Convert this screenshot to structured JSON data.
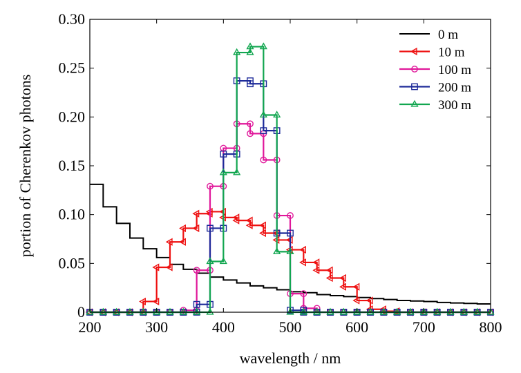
{
  "chart_data": {
    "type": "line",
    "xlabel": "wavelength / nm",
    "ylabel": "portion of Cherenkov photons",
    "xlim": [
      200,
      800
    ],
    "ylim": [
      0,
      0.3
    ],
    "xticks": [
      200,
      300,
      400,
      500,
      600,
      700,
      800
    ],
    "yticks": [
      0,
      0.05,
      0.1,
      0.15,
      0.2,
      0.25,
      0.3
    ],
    "xtick_labels": [
      "200",
      "300",
      "400",
      "500",
      "600",
      "700",
      "800"
    ],
    "ytick_labels": [
      "0",
      "0.05",
      "0.10",
      "0.15",
      "0.20",
      "0.25",
      "0.30"
    ],
    "grid": false,
    "legend_position": "top-right",
    "step_style": "bin histogram, markers at bin edges",
    "bin_edges": [
      200,
      220,
      240,
      260,
      280,
      300,
      320,
      340,
      360,
      380,
      400,
      420,
      440,
      460,
      480,
      500,
      520,
      540,
      560,
      580,
      600,
      620,
      640,
      660,
      680,
      700,
      720,
      740,
      760,
      780,
      800
    ],
    "series": [
      {
        "name": "0 m",
        "color": "#000000",
        "marker": "none",
        "values": [
          0.131,
          0.108,
          0.091,
          0.076,
          0.065,
          0.056,
          0.049,
          0.044,
          0.04,
          0.036,
          0.033,
          0.03,
          0.027,
          0.025,
          0.023,
          0.021,
          0.02,
          0.018,
          0.017,
          0.016,
          0.015,
          0.014,
          0.013,
          0.012,
          0.0115,
          0.011,
          0.01,
          0.0095,
          0.009,
          0.0085
        ]
      },
      {
        "name": "10 m",
        "color": "#ee1111",
        "marker": "triangle-left",
        "values": [
          0,
          0,
          0,
          0,
          0.011,
          0.046,
          0.072,
          0.086,
          0.101,
          0.103,
          0.097,
          0.094,
          0.089,
          0.081,
          0.074,
          0.064,
          0.051,
          0.043,
          0.035,
          0.026,
          0.012,
          0.003,
          0.001,
          0,
          0,
          0,
          0,
          0,
          0,
          0
        ]
      },
      {
        "name": "100 m",
        "color": "#e0179a",
        "marker": "circle",
        "values": [
          0,
          0,
          0,
          0,
          0,
          0,
          0,
          0.002,
          0.043,
          0.129,
          0.168,
          0.193,
          0.183,
          0.156,
          0.099,
          0.019,
          0.004,
          0,
          0,
          0,
          0,
          0,
          0,
          0,
          0,
          0,
          0,
          0,
          0,
          0
        ]
      },
      {
        "name": "200 m",
        "color": "#1d2a99",
        "marker": "square",
        "values": [
          0,
          0,
          0,
          0,
          0,
          0,
          0,
          0,
          0.008,
          0.086,
          0.162,
          0.237,
          0.234,
          0.186,
          0.081,
          0.002,
          0,
          0,
          0,
          0,
          0,
          0,
          0,
          0,
          0,
          0,
          0,
          0,
          0,
          0
        ]
      },
      {
        "name": "300 m",
        "color": "#12a650",
        "marker": "triangle-up",
        "values": [
          0,
          0,
          0,
          0,
          0,
          0,
          0,
          0,
          0,
          0.052,
          0.143,
          0.266,
          0.272,
          0.202,
          0.062,
          0,
          0,
          0,
          0,
          0,
          0,
          0,
          0,
          0,
          0,
          0,
          0,
          0,
          0,
          0
        ]
      }
    ]
  }
}
